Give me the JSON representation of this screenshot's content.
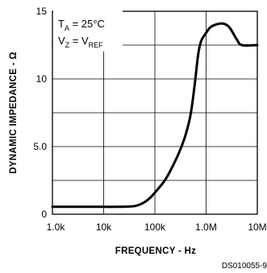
{
  "chart_data": {
    "type": "line",
    "x_scale": "log",
    "xlim": [
      1000,
      10000000
    ],
    "ylim": [
      0,
      15
    ],
    "grid": true,
    "xlabel": "FREQUENCY - Hz",
    "ylabel": "DYNAMIC IMPEDANCE - Ω",
    "x_ticks": [
      {
        "value": 1000,
        "label": "1.0k"
      },
      {
        "value": 10000,
        "label": "10k"
      },
      {
        "value": 100000,
        "label": "100k"
      },
      {
        "value": 1000000,
        "label": "1.0M"
      },
      {
        "value": 10000000,
        "label": "10M"
      }
    ],
    "y_ticks": [
      {
        "value": 0,
        "label": "0"
      },
      {
        "value": 5,
        "label": "5.0"
      },
      {
        "value": 10,
        "label": "10"
      },
      {
        "value": 15,
        "label": "15"
      }
    ],
    "annotation": {
      "line1": {
        "prefix": "T",
        "sub": "A",
        "rest": " = 25°C"
      },
      "line2": {
        "prefix": "V",
        "sub": "Z",
        "mid": " = V",
        "sub2": "REF"
      }
    },
    "series": [
      {
        "x": [
          1000,
          5000,
          20000,
          40000,
          60000,
          80000,
          100000,
          150000,
          200000,
          300000,
          400000,
          500000,
          600000,
          700000,
          800000,
          1000000,
          1200000,
          1500000,
          2000000,
          2500000,
          3000000,
          4000000,
          5000000,
          10000000
        ],
        "y": [
          0.55,
          0.55,
          0.55,
          0.6,
          0.85,
          1.2,
          1.6,
          2.4,
          3.2,
          4.6,
          5.9,
          7.4,
          9.6,
          11.8,
          12.8,
          13.4,
          13.8,
          14.0,
          14.1,
          14.0,
          13.7,
          12.9,
          12.5,
          12.5
        ]
      }
    ]
  },
  "figure_code": "DS010055-9"
}
